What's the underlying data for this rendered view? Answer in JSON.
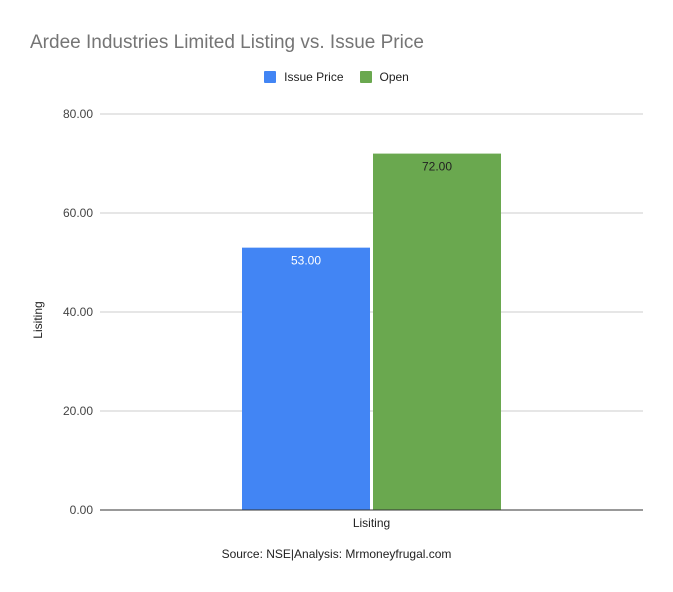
{
  "chart_data": {
    "type": "bar",
    "title": "Ardee Industries Limited Listing vs. Issue Price",
    "categories": [
      "Lisiting"
    ],
    "series": [
      {
        "name": "Issue Price",
        "values": [
          53.0
        ],
        "color": "#4285f4",
        "label_color": "#ffffff"
      },
      {
        "name": "Open",
        "values": [
          72.0
        ],
        "color": "#6aa84f",
        "label_color": "#222222"
      }
    ],
    "xlabel": "Lisiting",
    "ylabel": "Lisiting",
    "ylim": [
      0,
      80
    ],
    "yticks": [
      "0.00",
      "20.00",
      "40.00",
      "60.00",
      "80.00"
    ],
    "data_labels": [
      "53.00",
      "72.00"
    ],
    "grid": true,
    "legend_position": "top"
  },
  "footer": {
    "source": "Source: NSE|Analysis: Mrmoneyfrugal.com"
  }
}
